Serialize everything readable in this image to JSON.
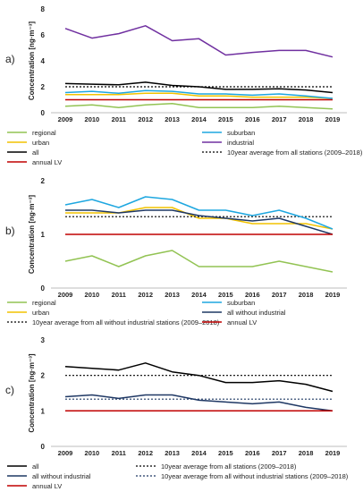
{
  "chart_data": [
    {
      "type": "line",
      "panel_label": "a)",
      "ylabel": "Concentration [ng·m⁻³]",
      "ylim": [
        0,
        8
      ],
      "yticks": [
        0,
        2,
        4,
        6,
        8
      ],
      "grid": false,
      "categories": [
        "2009",
        "2010",
        "2011",
        "2012",
        "2013",
        "2014",
        "2015",
        "2016",
        "2017",
        "2018",
        "2019"
      ],
      "series": [
        {
          "name": "regional",
          "color": "#92c353",
          "dash": "",
          "values": [
            0.5,
            0.6,
            0.4,
            0.6,
            0.7,
            0.4,
            0.4,
            0.4,
            0.5,
            0.4,
            0.3
          ]
        },
        {
          "name": "urban",
          "color": "#f2c200",
          "dash": "",
          "values": [
            1.4,
            1.4,
            1.4,
            1.5,
            1.5,
            1.3,
            1.3,
            1.2,
            1.2,
            1.2,
            1.1
          ]
        },
        {
          "name": "all",
          "color": "#000000",
          "dash": "",
          "values": [
            2.25,
            2.2,
            2.15,
            2.35,
            2.1,
            2.0,
            1.8,
            1.8,
            1.85,
            1.75,
            1.55
          ]
        },
        {
          "name": "annual LV",
          "color": "#c00000",
          "dash": "",
          "values": [
            1,
            1,
            1,
            1,
            1,
            1,
            1,
            1,
            1,
            1,
            1
          ]
        },
        {
          "name": "suburban",
          "color": "#1ea7e0",
          "dash": "",
          "values": [
            1.55,
            1.65,
            1.5,
            1.7,
            1.65,
            1.45,
            1.45,
            1.35,
            1.45,
            1.3,
            1.1
          ]
        },
        {
          "name": "industrial",
          "color": "#7030a0",
          "dash": "",
          "values": [
            6.5,
            5.75,
            6.1,
            6.7,
            5.55,
            5.7,
            4.45,
            4.65,
            4.8,
            4.8,
            4.3
          ]
        },
        {
          "name": "10year average from all stations (2009–2018)",
          "color": "#000000",
          "dash": "2,2",
          "values": [
            2.0,
            2.0,
            2.0,
            2.0,
            2.0,
            2.0,
            2.0,
            2.0,
            2.0,
            2.0,
            2.0
          ]
        }
      ],
      "legend": {
        "placement": "bottom",
        "left_column": [
          "regional",
          "urban",
          "all",
          "annual LV"
        ],
        "right_column": [
          "suburban",
          "industrial",
          "10year average from all stations (2009–2018)"
        ]
      }
    },
    {
      "type": "line",
      "panel_label": "b)",
      "ylabel": "Concentration [ng·m⁻³]",
      "ylim": [
        0,
        2
      ],
      "yticks": [
        0,
        1,
        2
      ],
      "grid": false,
      "categories": [
        "2009",
        "2010",
        "2011",
        "2012",
        "2013",
        "2014",
        "2015",
        "2016",
        "2017",
        "2018",
        "2019"
      ],
      "series": [
        {
          "name": "regional",
          "color": "#92c353",
          "dash": "",
          "values": [
            0.5,
            0.6,
            0.4,
            0.6,
            0.7,
            0.4,
            0.4,
            0.4,
            0.5,
            0.4,
            0.3
          ]
        },
        {
          "name": "urban",
          "color": "#f2c200",
          "dash": "",
          "values": [
            1.4,
            1.4,
            1.4,
            1.5,
            1.5,
            1.3,
            1.3,
            1.2,
            1.2,
            1.2,
            1.1
          ]
        },
        {
          "name": "10year average from all without industrial stations (2009–2018)",
          "color": "#000000",
          "dash": "2,2",
          "values": [
            1.33,
            1.33,
            1.33,
            1.33,
            1.33,
            1.33,
            1.33,
            1.33,
            1.33,
            1.33,
            1.33
          ]
        },
        {
          "name": "suburban",
          "color": "#1ea7e0",
          "dash": "",
          "values": [
            1.55,
            1.65,
            1.5,
            1.7,
            1.65,
            1.45,
            1.45,
            1.35,
            1.45,
            1.3,
            1.1
          ]
        },
        {
          "name": "all without industrial",
          "color": "#1f3864",
          "dash": "",
          "values": [
            1.45,
            1.45,
            1.4,
            1.45,
            1.45,
            1.35,
            1.3,
            1.25,
            1.3,
            1.15,
            1.0
          ]
        },
        {
          "name": "annual LV",
          "color": "#c00000",
          "dash": "",
          "values": [
            1,
            1,
            1,
            1,
            1,
            1,
            1,
            1,
            1,
            1,
            1
          ]
        }
      ],
      "legend": {
        "placement": "bottom",
        "left_column": [
          "regional",
          "urban",
          "10year average from all without industrial stations (2009–2018)"
        ],
        "right_column": [
          "suburban",
          "all without industrial",
          "annual LV"
        ]
      }
    },
    {
      "type": "line",
      "panel_label": "c)",
      "ylabel": "Concentration [ng·m⁻³]",
      "ylim": [
        0,
        3
      ],
      "yticks": [
        0,
        1,
        2,
        3
      ],
      "grid": false,
      "categories": [
        "2009",
        "2010",
        "2011",
        "2012",
        "2013",
        "2014",
        "2015",
        "2016",
        "2017",
        "2018",
        "2019"
      ],
      "series": [
        {
          "name": "all",
          "color": "#000000",
          "dash": "",
          "values": [
            2.25,
            2.2,
            2.15,
            2.35,
            2.1,
            2.0,
            1.8,
            1.8,
            1.85,
            1.75,
            1.55
          ]
        },
        {
          "name": "all without industrial",
          "color": "#1f3864",
          "dash": "",
          "values": [
            1.4,
            1.45,
            1.35,
            1.45,
            1.45,
            1.3,
            1.25,
            1.2,
            1.25,
            1.1,
            1.0
          ]
        },
        {
          "name": "annual LV",
          "color": "#c00000",
          "dash": "",
          "values": [
            1,
            1,
            1,
            1,
            1,
            1,
            1,
            1,
            1,
            1,
            1
          ]
        },
        {
          "name": "10year average from all stations (2009–2018)",
          "color": "#000000",
          "dash": "2,2",
          "values": [
            2.0,
            2.0,
            2.0,
            2.0,
            2.0,
            2.0,
            2.0,
            2.0,
            2.0,
            2.0,
            2.0
          ]
        },
        {
          "name": "10year average from all without industrial stations (2009–2018)",
          "color": "#1f3864",
          "dash": "2,2",
          "values": [
            1.33,
            1.33,
            1.33,
            1.33,
            1.33,
            1.33,
            1.33,
            1.33,
            1.33,
            1.33,
            1.33
          ]
        }
      ],
      "legend": {
        "placement": "bottom",
        "left_column": [
          "all",
          "all without industrial",
          "annual LV"
        ],
        "right_column": [
          "10year average from all stations (2009–2018)",
          "10year average from all without industrial stations (2009–2018)"
        ]
      }
    }
  ]
}
